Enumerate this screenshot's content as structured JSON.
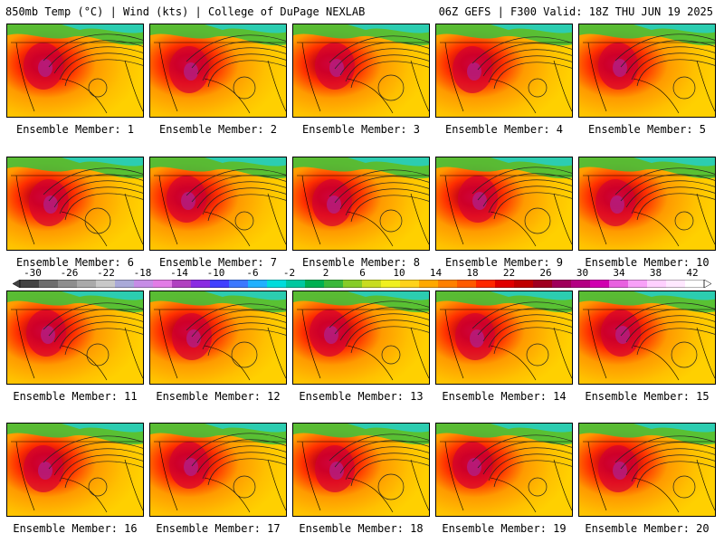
{
  "header": {
    "left_title": "850mb Temp (°C) | Wind (kts) | College of DuPage NEXLAB",
    "right_title": "06Z GEFS | F300 Valid: 18Z THU JUN 19 2025"
  },
  "colorbar": {
    "labels": [
      "-30",
      "-26",
      "-22",
      "-18",
      "-14",
      "-10",
      "-6",
      "-2",
      "2",
      "6",
      "10",
      "14",
      "18",
      "22",
      "26",
      "30",
      "34",
      "38",
      "42"
    ],
    "values": [
      -30,
      -26,
      -22,
      -18,
      -14,
      -10,
      -6,
      -2,
      2,
      6,
      10,
      14,
      18,
      22,
      26,
      30,
      34,
      38,
      42
    ],
    "colors": [
      "#444444",
      "#6e6e6e",
      "#8e8e8e",
      "#aaaaaa",
      "#c8c8c8",
      "#a9a9d8",
      "#c68ce6",
      "#e27ce6",
      "#b040c0",
      "#8a2be2",
      "#4040ff",
      "#3b78ff",
      "#1fb0ff",
      "#00dcdc",
      "#00c8a0",
      "#00b050",
      "#3ab83a",
      "#86cc28",
      "#c8dc20",
      "#f0f020",
      "#ffd21a",
      "#ffa800",
      "#ff8000",
      "#ff5a00",
      "#ff2800",
      "#e00000",
      "#c00000",
      "#a00020",
      "#a0005a",
      "#b40082",
      "#d000b0",
      "#e860e0",
      "#f8a0f8",
      "#ffd0ff",
      "#ffe8ff",
      "#ffffff"
    ]
  },
  "members": [
    {
      "label": "Ensemble Member: 1"
    },
    {
      "label": "Ensemble Member: 2"
    },
    {
      "label": "Ensemble Member: 3"
    },
    {
      "label": "Ensemble Member: 4"
    },
    {
      "label": "Ensemble Member: 5"
    },
    {
      "label": "Ensemble Member: 6"
    },
    {
      "label": "Ensemble Member: 7"
    },
    {
      "label": "Ensemble Member: 8"
    },
    {
      "label": "Ensemble Member: 9"
    },
    {
      "label": "Ensemble Member: 10"
    },
    {
      "label": "Ensemble Member: 11"
    },
    {
      "label": "Ensemble Member: 12"
    },
    {
      "label": "Ensemble Member: 13"
    },
    {
      "label": "Ensemble Member: 14"
    },
    {
      "label": "Ensemble Member: 15"
    },
    {
      "label": "Ensemble Member: 16"
    },
    {
      "label": "Ensemble Member: 17"
    },
    {
      "label": "Ensemble Member: 18"
    },
    {
      "label": "Ensemble Member: 19"
    },
    {
      "label": "Ensemble Member: 20"
    }
  ]
}
